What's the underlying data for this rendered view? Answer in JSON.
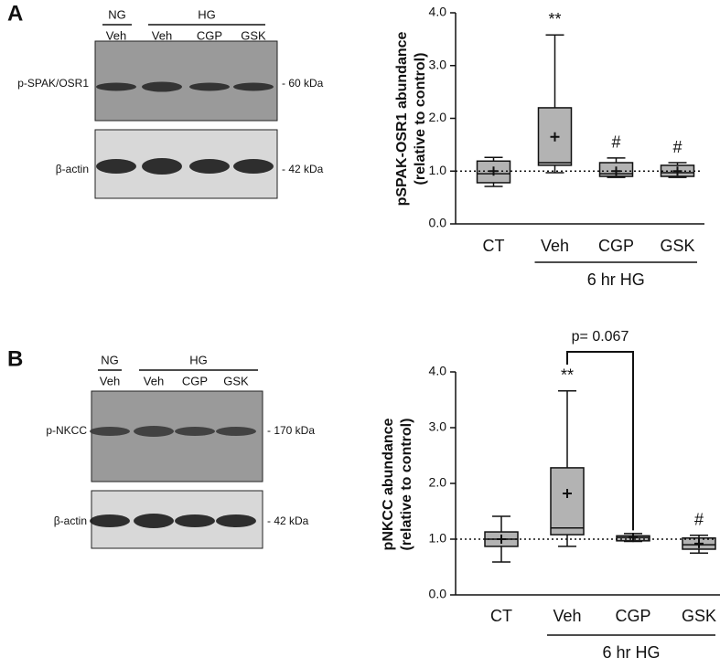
{
  "chart_data": [
    {
      "type": "box",
      "panel": "A",
      "ylabel": [
        "pSPAK-OSR1 abundance",
        "(relative to control)"
      ],
      "categories": [
        "CT",
        "Veh",
        "CGP",
        "GSK"
      ],
      "boxes": [
        {
          "min": 0.71,
          "q1": 0.78,
          "median": 0.95,
          "q3": 1.19,
          "max": 1.26,
          "mean": 1.0
        },
        {
          "min": 0.97,
          "q1": 1.11,
          "median": 1.16,
          "q3": 2.2,
          "max": 3.58,
          "mean": 1.65
        },
        {
          "min": 0.88,
          "q1": 0.9,
          "median": 0.95,
          "q3": 1.16,
          "max": 1.25,
          "mean": 1.0
        },
        {
          "min": 0.88,
          "q1": 0.9,
          "median": 0.97,
          "q3": 1.11,
          "max": 1.16,
          "mean": 1.0
        }
      ],
      "ylim": [
        0,
        4
      ],
      "yticks": [
        {
          "value": 0,
          "label": "0.0"
        },
        {
          "value": 1,
          "label": "1.0"
        },
        {
          "value": 2,
          "label": "2.0"
        },
        {
          "value": 3,
          "label": "3.0"
        },
        {
          "value": 4,
          "label": "4.0"
        }
      ],
      "reference_line": 1,
      "annotations": [
        {
          "text": "**",
          "category": "Veh"
        },
        {
          "text": "#",
          "category": "CGP"
        },
        {
          "text": "#",
          "category": "GSK"
        }
      ],
      "group_label": {
        "text": "6 hr HG",
        "from": "Veh",
        "to": "GSK"
      },
      "color": "#b3b3b3"
    },
    {
      "type": "box",
      "panel": "B",
      "ylabel": [
        "pNKCC abundance",
        "(relative to control)"
      ],
      "categories": [
        "CT",
        "Veh",
        "CGP",
        "GSK"
      ],
      "boxes": [
        {
          "min": 0.59,
          "q1": 0.87,
          "median": 1.0,
          "q3": 1.13,
          "max": 1.41,
          "mean": 1.0
        },
        {
          "min": 0.87,
          "q1": 1.08,
          "median": 1.2,
          "q3": 2.28,
          "max": 3.66,
          "mean": 1.82
        },
        {
          "min": 0.96,
          "q1": 0.97,
          "median": 1.03,
          "q3": 1.06,
          "max": 1.1,
          "mean": 1.03
        },
        {
          "min": 0.75,
          "q1": 0.82,
          "median": 0.9,
          "q3": 1.02,
          "max": 1.07,
          "mean": 0.92
        }
      ],
      "ylim": [
        0,
        4
      ],
      "yticks": [
        {
          "value": 0,
          "label": "0.0"
        },
        {
          "value": 1,
          "label": "1.0"
        },
        {
          "value": 2,
          "label": "2.0"
        },
        {
          "value": 3,
          "label": "3.0"
        },
        {
          "value": 4,
          "label": "4.0"
        }
      ],
      "reference_line": 1,
      "annotations": [
        {
          "text": "**",
          "category": "Veh"
        },
        {
          "text": "#",
          "category": "GSK"
        }
      ],
      "bracket": {
        "text": "p= 0.067",
        "from": "Veh",
        "to": "CGP"
      },
      "group_label": {
        "text": "6 hr HG",
        "from": "Veh",
        "to": "GSK"
      },
      "color": "#b3b3b3"
    }
  ],
  "blots": [
    {
      "panel_label": "A",
      "groups": [
        "NG",
        "HG"
      ],
      "lanes": [
        "Veh",
        "Veh",
        "CGP",
        "GSK"
      ],
      "rows": [
        {
          "label": "p-SPAK/OSR1",
          "size": "- 60 kDa"
        },
        {
          "label": "β-actin",
          "size": "- 42 kDa"
        }
      ]
    },
    {
      "panel_label": "B",
      "groups": [
        "NG",
        "HG"
      ],
      "lanes": [
        "Veh",
        "Veh",
        "CGP",
        "GSK"
      ],
      "rows": [
        {
          "label": "p-NKCC",
          "size": "- 170 kDa"
        },
        {
          "label": "β-actin",
          "size": "- 42 kDa"
        }
      ]
    }
  ]
}
